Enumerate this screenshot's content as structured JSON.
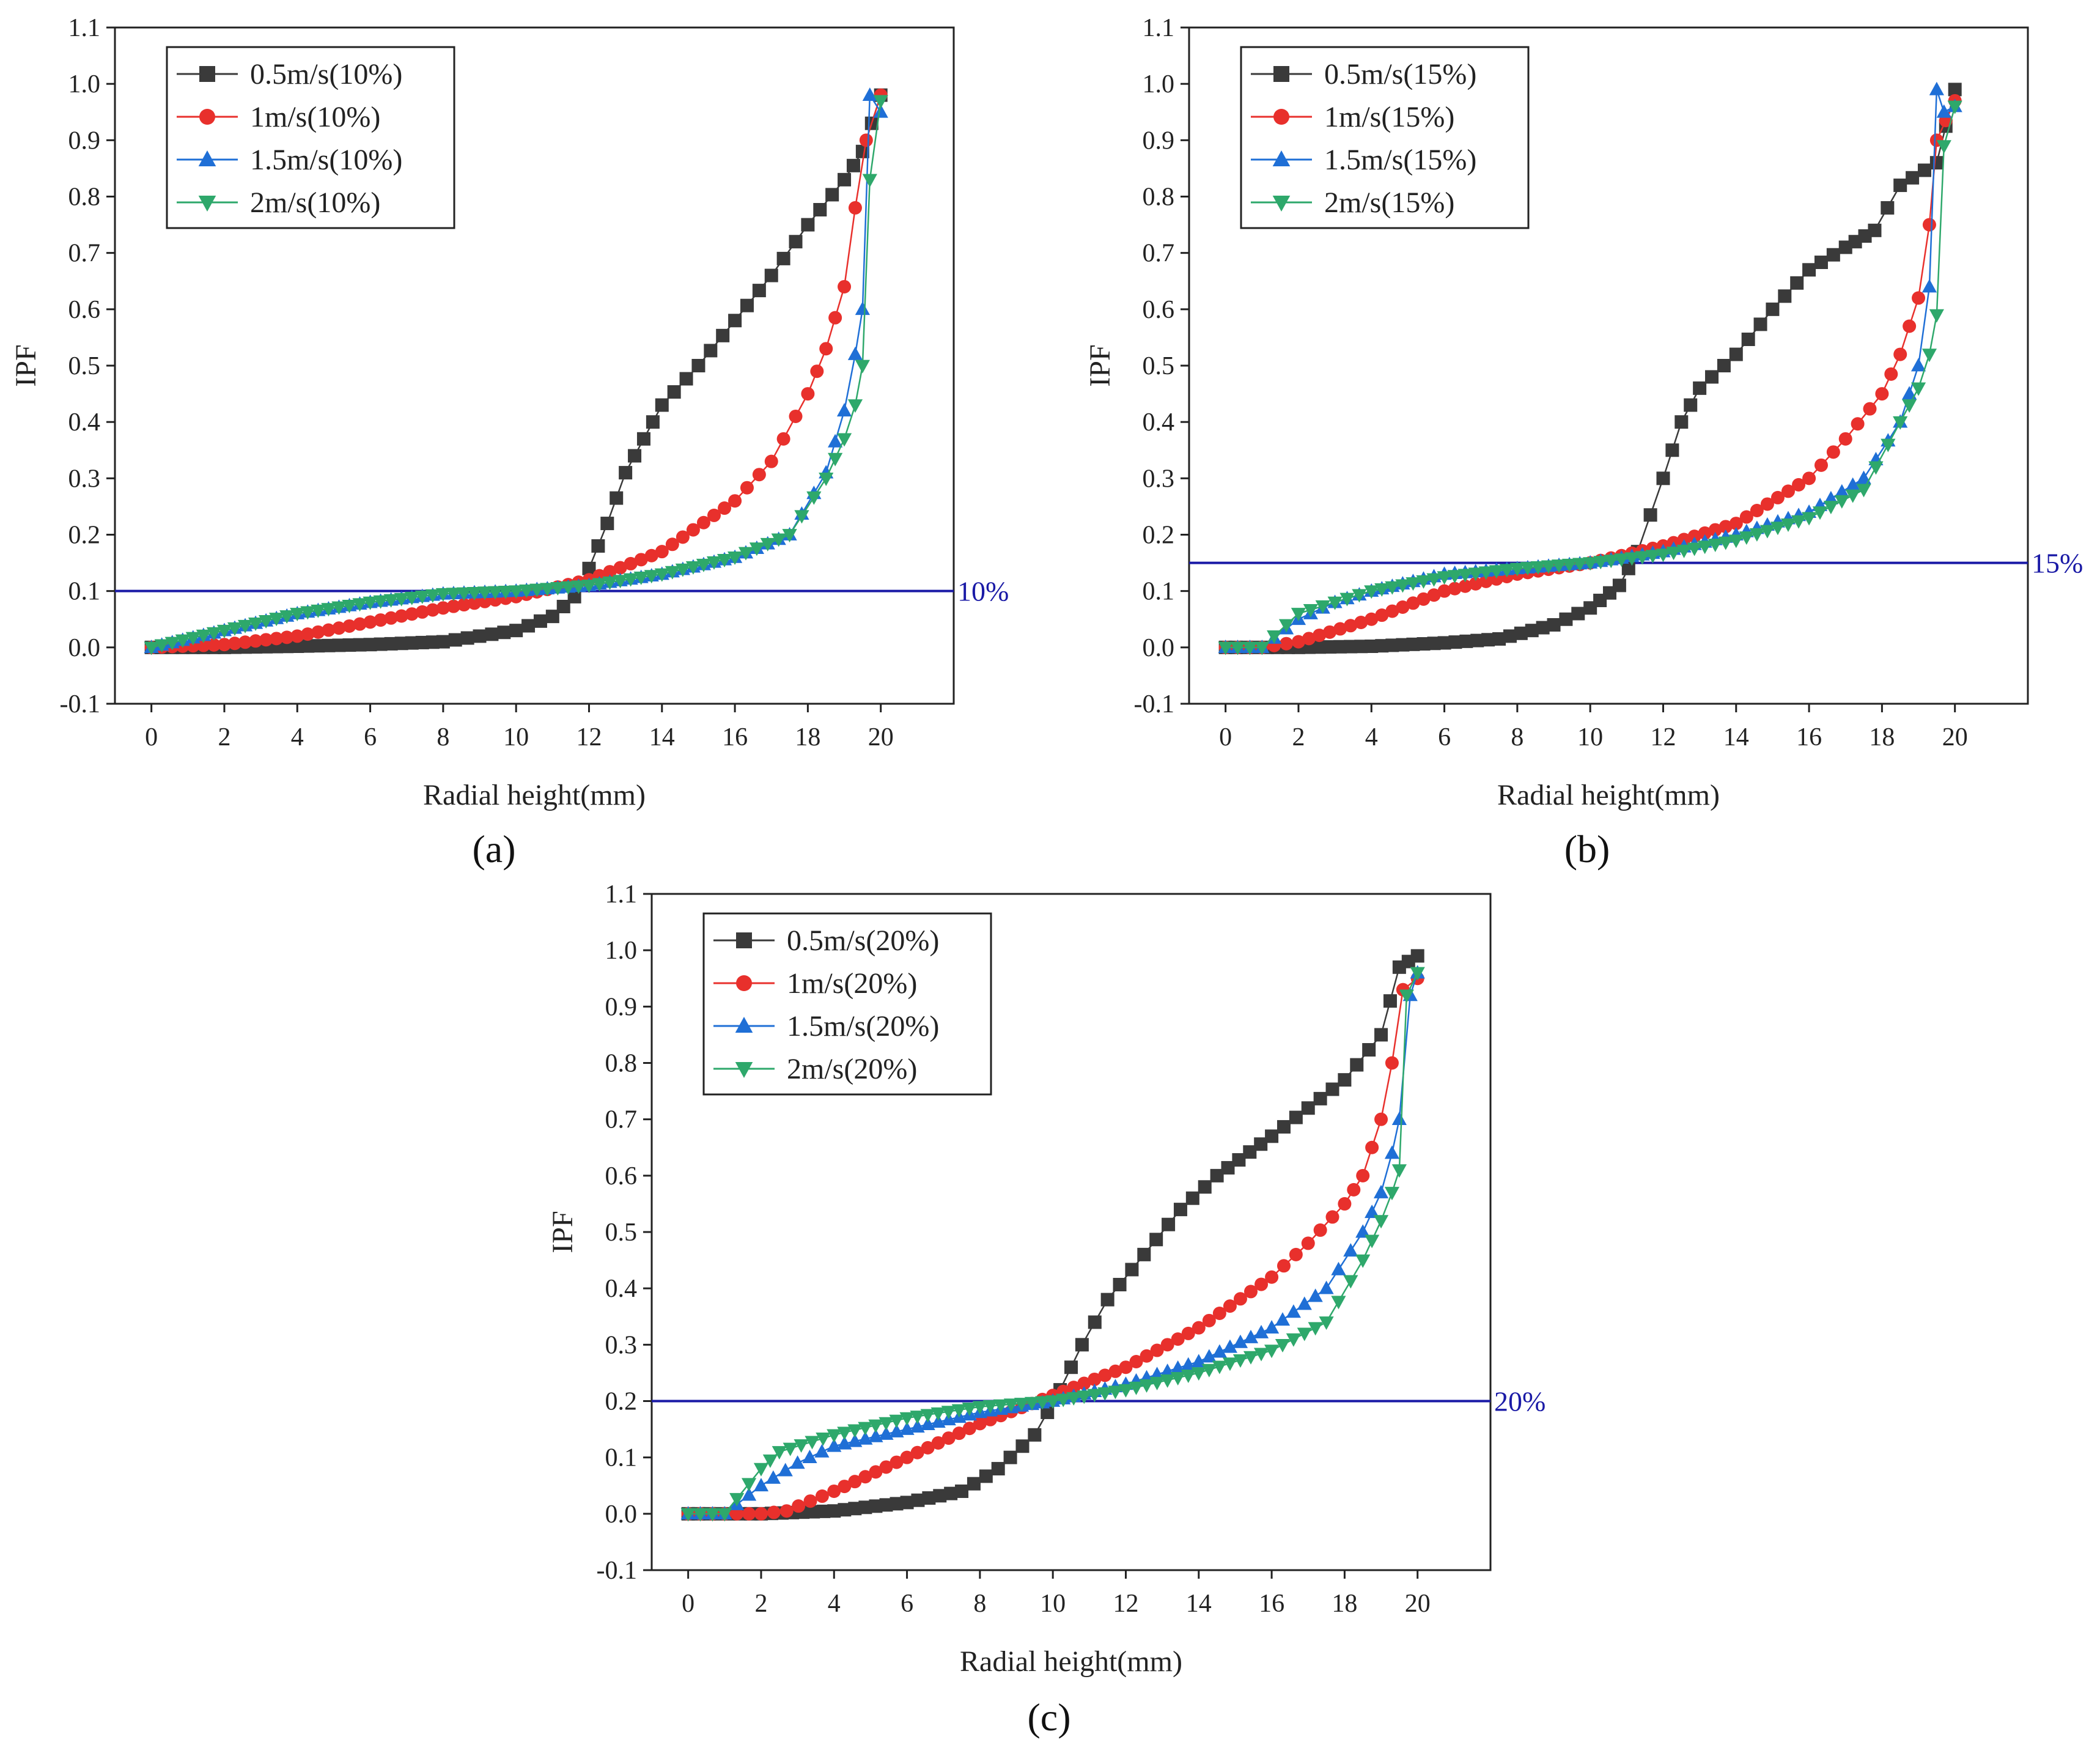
{
  "figure": {
    "panels": [
      "(a)",
      "(b)",
      "(c)"
    ],
    "series_colors": {
      "s05": "#3a3a3a",
      "s1": "#e8302c",
      "s15": "#1f6fd6",
      "s2": "#2ea86b",
      "ref": "#1a1aa6"
    }
  },
  "chart_data": [
    {
      "type": "line",
      "panel_label": "(a)",
      "title": "",
      "xlabel": "Radial height(mm)",
      "ylabel": "IPF",
      "xlim": [
        -1,
        22
      ],
      "ylim": [
        -0.1,
        1.1
      ],
      "xticks": [
        "0",
        "2",
        "4",
        "6",
        "8",
        "10",
        "12",
        "14",
        "16",
        "18",
        "20"
      ],
      "yticks": [
        "-0.1",
        "0.0",
        "0.1",
        "0.2",
        "0.3",
        "0.4",
        "0.5",
        "0.6",
        "0.7",
        "0.8",
        "0.9",
        "1.0",
        "1.1"
      ],
      "reference_line": {
        "y": 0.1,
        "label": "10%"
      },
      "legend_position": "top-left",
      "series": [
        {
          "name": "0.5m/s(10%)",
          "marker": "square",
          "color": "#3a3a3a",
          "x": [
            0,
            2,
            4,
            6,
            8,
            9,
            10,
            11,
            11.6,
            12,
            12.5,
            13,
            13.5,
            14,
            15,
            16,
            17,
            18,
            19,
            19.5,
            20
          ],
          "y": [
            0.0,
            0.0,
            0.002,
            0.005,
            0.01,
            0.02,
            0.03,
            0.055,
            0.09,
            0.14,
            0.22,
            0.31,
            0.37,
            0.43,
            0.5,
            0.58,
            0.66,
            0.75,
            0.83,
            0.88,
            0.98
          ]
        },
        {
          "name": "1m/s(10%)",
          "marker": "circle",
          "color": "#e8302c",
          "x": [
            0,
            2,
            4,
            6,
            8,
            10,
            12,
            14,
            16,
            17,
            18,
            18.5,
            19,
            19.3,
            19.6,
            20
          ],
          "y": [
            0.0,
            0.005,
            0.02,
            0.045,
            0.07,
            0.09,
            0.12,
            0.17,
            0.26,
            0.33,
            0.45,
            0.53,
            0.64,
            0.78,
            0.9,
            0.98
          ]
        },
        {
          "name": "1.5m/s(10%)",
          "marker": "triangle-up",
          "color": "#1f6fd6",
          "x": [
            0,
            2,
            4,
            6,
            8,
            10,
            12,
            14,
            16,
            17.5,
            18.5,
            19,
            19.3,
            19.5,
            19.7,
            20
          ],
          "y": [
            0.0,
            0.03,
            0.06,
            0.08,
            0.095,
            0.1,
            0.11,
            0.13,
            0.16,
            0.2,
            0.31,
            0.42,
            0.52,
            0.6,
            0.98,
            0.95
          ]
        },
        {
          "name": "2m/s(10%)",
          "marker": "triangle-down",
          "color": "#2ea86b",
          "x": [
            0,
            2,
            4,
            6,
            8,
            10,
            12,
            14,
            16,
            17.5,
            18.5,
            19,
            19.3,
            19.5,
            19.7,
            20
          ],
          "y": [
            0.0,
            0.03,
            0.06,
            0.08,
            0.095,
            0.1,
            0.11,
            0.13,
            0.16,
            0.2,
            0.3,
            0.37,
            0.43,
            0.5,
            0.83,
            0.97
          ]
        }
      ]
    },
    {
      "type": "line",
      "panel_label": "(b)",
      "title": "",
      "xlabel": "Radial height(mm)",
      "ylabel": "IPF",
      "xlim": [
        -1,
        22
      ],
      "ylim": [
        -0.1,
        1.1
      ],
      "xticks": [
        "0",
        "2",
        "4",
        "6",
        "8",
        "10",
        "12",
        "14",
        "16",
        "18",
        "20"
      ],
      "yticks": [
        "-0.1",
        "0.0",
        "0.1",
        "0.2",
        "0.3",
        "0.4",
        "0.5",
        "0.6",
        "0.7",
        "0.8",
        "0.9",
        "1.0",
        "1.1"
      ],
      "reference_line": {
        "y": 0.15,
        "label": "15%"
      },
      "legend_position": "top-left",
      "series": [
        {
          "name": "0.5m/s(15%)",
          "marker": "square",
          "color": "#3a3a3a",
          "x": [
            0,
            2,
            4,
            6,
            7.5,
            9,
            10,
            10.8,
            11.3,
            12,
            12.5,
            13,
            14,
            15,
            16,
            17,
            17.8,
            18.5,
            19.5,
            20
          ],
          "y": [
            0.0,
            0.0,
            0.002,
            0.008,
            0.015,
            0.04,
            0.07,
            0.11,
            0.17,
            0.3,
            0.4,
            0.46,
            0.52,
            0.6,
            0.67,
            0.71,
            0.74,
            0.82,
            0.86,
            0.99
          ]
        },
        {
          "name": "1m/s(15%)",
          "marker": "circle",
          "color": "#e8302c",
          "x": [
            0,
            1,
            2,
            4,
            6,
            8,
            10,
            12,
            14,
            16,
            17,
            18,
            18.5,
            19,
            19.3,
            19.5,
            20
          ],
          "y": [
            0.0,
            0.0,
            0.01,
            0.05,
            0.1,
            0.13,
            0.15,
            0.18,
            0.22,
            0.3,
            0.37,
            0.45,
            0.52,
            0.62,
            0.75,
            0.9,
            0.97
          ]
        },
        {
          "name": "1.5m/s(15%)",
          "marker": "triangle-up",
          "color": "#1f6fd6",
          "x": [
            0,
            1,
            2,
            3,
            4,
            6,
            8,
            10,
            12,
            14,
            16,
            17.5,
            18.5,
            19,
            19.3,
            19.5,
            19.7,
            20
          ],
          "y": [
            0.0,
            0.0,
            0.05,
            0.08,
            0.1,
            0.13,
            0.14,
            0.15,
            0.17,
            0.2,
            0.24,
            0.3,
            0.4,
            0.5,
            0.64,
            0.99,
            0.95,
            0.96
          ]
        },
        {
          "name": "2m/s(15%)",
          "marker": "triangle-down",
          "color": "#2ea86b",
          "x": [
            0,
            1,
            2,
            3,
            4,
            6,
            8,
            10,
            12,
            14,
            16,
            17.5,
            18.5,
            19,
            19.3,
            19.5,
            19.7,
            20
          ],
          "y": [
            0.0,
            0.0,
            0.06,
            0.08,
            0.1,
            0.125,
            0.14,
            0.15,
            0.165,
            0.19,
            0.23,
            0.28,
            0.4,
            0.46,
            0.52,
            0.59,
            0.89,
            0.96
          ]
        }
      ]
    },
    {
      "type": "line",
      "panel_label": "(c)",
      "title": "",
      "xlabel": "Radial height(mm)",
      "ylabel": "IPF",
      "xlim": [
        -1,
        22
      ],
      "ylim": [
        -0.1,
        1.1
      ],
      "xticks": [
        "0",
        "2",
        "4",
        "6",
        "8",
        "10",
        "12",
        "14",
        "16",
        "18",
        "20"
      ],
      "yticks": [
        "-0.1",
        "0.0",
        "0.1",
        "0.2",
        "0.3",
        "0.4",
        "0.5",
        "0.6",
        "0.7",
        "0.8",
        "0.9",
        "1.0",
        "1.1"
      ],
      "reference_line": {
        "y": 0.2,
        "label": "20%"
      },
      "legend_position": "top-left",
      "series": [
        {
          "name": "0.5m/s(20%)",
          "marker": "square",
          "color": "#3a3a3a",
          "x": [
            0,
            2,
            4,
            6,
            7.5,
            8.5,
            9.5,
            10.2,
            10.8,
            11.5,
            12.5,
            13.5,
            14.5,
            16,
            17,
            18,
            19,
            19.5,
            20
          ],
          "y": [
            0.0,
            0.0,
            0.005,
            0.02,
            0.04,
            0.08,
            0.14,
            0.22,
            0.3,
            0.38,
            0.46,
            0.54,
            0.6,
            0.67,
            0.72,
            0.77,
            0.85,
            0.97,
            0.99
          ]
        },
        {
          "name": "1m/s(20%)",
          "marker": "circle",
          "color": "#e8302c",
          "x": [
            0,
            1,
            2,
            2.7,
            4,
            6,
            8,
            10,
            12,
            14,
            16,
            17,
            18,
            18.5,
            19,
            19.3,
            19.6,
            20
          ],
          "y": [
            0.0,
            0.0,
            0.0,
            0.005,
            0.04,
            0.1,
            0.16,
            0.21,
            0.26,
            0.33,
            0.42,
            0.48,
            0.55,
            0.6,
            0.7,
            0.8,
            0.93,
            0.95
          ]
        },
        {
          "name": "1.5m/s(20%)",
          "marker": "triangle-up",
          "color": "#1f6fd6",
          "x": [
            0,
            1,
            2,
            3,
            4,
            6,
            8,
            10,
            12,
            14,
            16,
            17.5,
            18.5,
            19,
            19.3,
            19.5,
            19.8,
            20
          ],
          "y": [
            0.0,
            0.0,
            0.05,
            0.09,
            0.12,
            0.15,
            0.18,
            0.2,
            0.23,
            0.27,
            0.33,
            0.4,
            0.5,
            0.57,
            0.64,
            0.7,
            0.92,
            0.96
          ]
        },
        {
          "name": "2m/s(20%)",
          "marker": "triangle-down",
          "color": "#2ea86b",
          "x": [
            0,
            1,
            2,
            2.5,
            4,
            6,
            8,
            10,
            12,
            14,
            16,
            17.5,
            18.5,
            19,
            19.3,
            19.5,
            19.7,
            20
          ],
          "y": [
            0.0,
            0.0,
            0.08,
            0.11,
            0.14,
            0.17,
            0.19,
            0.2,
            0.22,
            0.25,
            0.29,
            0.34,
            0.45,
            0.52,
            0.57,
            0.61,
            0.92,
            0.96
          ]
        }
      ]
    }
  ]
}
